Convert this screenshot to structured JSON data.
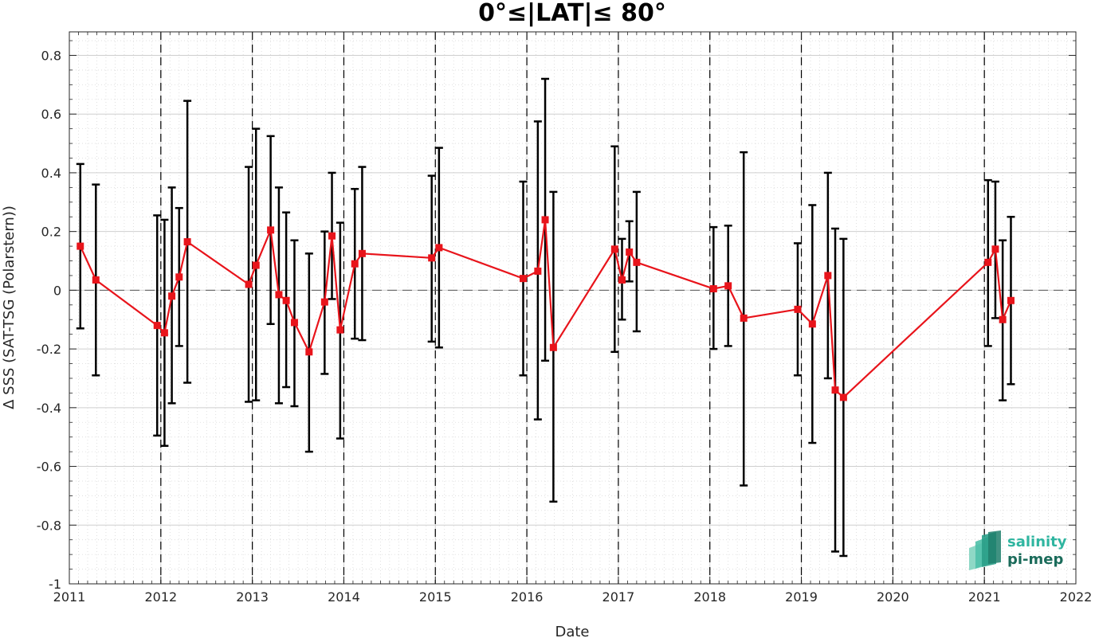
{
  "chart_data": {
    "type": "line",
    "title": "0°≤|LAT|≤ 80°",
    "xlabel": "Date",
    "ylabel": "Δ SSS (SAT-TSG (Polarstern))",
    "xlim": [
      2011,
      2022
    ],
    "ylim": [
      -1,
      0.88
    ],
    "x_ticks": [
      2011,
      2012,
      2013,
      2014,
      2015,
      2016,
      2017,
      2018,
      2019,
      2020,
      2021,
      2022
    ],
    "x_tick_labels": [
      "2011",
      "2012",
      "2013",
      "2014",
      "2015",
      "2016",
      "2017",
      "2018",
      "2019",
      "2020",
      "2021",
      "2022"
    ],
    "y_ticks": [
      -1,
      -0.8,
      -0.6,
      -0.4,
      -0.2,
      0,
      0.2,
      0.4,
      0.6,
      0.8
    ],
    "y_tick_labels": [
      "-1",
      "-0.8",
      "-0.6",
      "-0.4",
      "-0.2",
      "0",
      "0.2",
      "0.4",
      "0.6",
      "0.8"
    ],
    "year_boundaries": [
      2012,
      2013,
      2014,
      2015,
      2016,
      2017,
      2018,
      2019,
      2020,
      2021
    ],
    "zero_line": 0,
    "grid": "minor dotted",
    "colors": {
      "series": "#e8141b",
      "errorbar": "#000000",
      "grid": "#d9d9d9"
    },
    "series": [
      {
        "points": [
          {
            "x": 2011.12,
            "y": 0.15,
            "lo": -0.13,
            "hi": 0.43
          },
          {
            "x": 2011.29,
            "y": 0.035,
            "lo": -0.29,
            "hi": 0.36
          },
          {
            "x": 2011.96,
            "y": -0.12,
            "lo": -0.495,
            "hi": 0.255
          },
          {
            "x": 2012.04,
            "y": -0.145,
            "lo": -0.53,
            "hi": 0.24
          },
          {
            "x": 2012.12,
            "y": -0.02,
            "lo": -0.385,
            "hi": 0.35
          },
          {
            "x": 2012.2,
            "y": 0.045,
            "lo": -0.19,
            "hi": 0.28
          },
          {
            "x": 2012.29,
            "y": 0.165,
            "lo": -0.315,
            "hi": 0.645
          },
          {
            "x": 2012.96,
            "y": 0.02,
            "lo": -0.38,
            "hi": 0.42
          },
          {
            "x": 2013.04,
            "y": 0.085,
            "lo": -0.375,
            "hi": 0.55
          },
          {
            "x": 2013.2,
            "y": 0.205,
            "lo": -0.115,
            "hi": 0.525
          },
          {
            "x": 2013.29,
            "y": -0.015,
            "lo": -0.385,
            "hi": 0.35
          },
          {
            "x": 2013.37,
            "y": -0.035,
            "lo": -0.33,
            "hi": 0.265
          },
          {
            "x": 2013.46,
            "y": -0.11,
            "lo": -0.395,
            "hi": 0.17
          },
          {
            "x": 2013.62,
            "y": -0.21,
            "lo": -0.55,
            "hi": 0.125
          },
          {
            "x": 2013.79,
            "y": -0.04,
            "lo": -0.285,
            "hi": 0.2
          },
          {
            "x": 2013.87,
            "y": 0.185,
            "lo": -0.03,
            "hi": 0.4
          },
          {
            "x": 2013.96,
            "y": -0.135,
            "lo": -0.505,
            "hi": 0.23
          },
          {
            "x": 2014.12,
            "y": 0.09,
            "lo": -0.165,
            "hi": 0.345
          },
          {
            "x": 2014.2,
            "y": 0.125,
            "lo": -0.17,
            "hi": 0.42
          },
          {
            "x": 2014.96,
            "y": 0.11,
            "lo": -0.175,
            "hi": 0.39
          },
          {
            "x": 2015.04,
            "y": 0.145,
            "lo": -0.195,
            "hi": 0.485
          },
          {
            "x": 2015.96,
            "y": 0.04,
            "lo": -0.29,
            "hi": 0.37
          },
          {
            "x": 2016.12,
            "y": 0.065,
            "lo": -0.44,
            "hi": 0.575
          },
          {
            "x": 2016.2,
            "y": 0.24,
            "lo": -0.24,
            "hi": 0.72
          },
          {
            "x": 2016.29,
            "y": -0.195,
            "lo": -0.72,
            "hi": 0.335
          },
          {
            "x": 2016.96,
            "y": 0.14,
            "lo": -0.21,
            "hi": 0.49
          },
          {
            "x": 2017.04,
            "y": 0.035,
            "lo": -0.1,
            "hi": 0.175
          },
          {
            "x": 2017.12,
            "y": 0.13,
            "lo": 0.03,
            "hi": 0.235
          },
          {
            "x": 2017.2,
            "y": 0.095,
            "lo": -0.14,
            "hi": 0.335
          },
          {
            "x": 2018.04,
            "y": 0.005,
            "lo": -0.2,
            "hi": 0.215
          },
          {
            "x": 2018.2,
            "y": 0.015,
            "lo": -0.19,
            "hi": 0.22
          },
          {
            "x": 2018.37,
            "y": -0.095,
            "lo": -0.665,
            "hi": 0.47
          },
          {
            "x": 2018.96,
            "y": -0.065,
            "lo": -0.29,
            "hi": 0.16
          },
          {
            "x": 2019.12,
            "y": -0.115,
            "lo": -0.52,
            "hi": 0.29
          },
          {
            "x": 2019.29,
            "y": 0.05,
            "lo": -0.3,
            "hi": 0.4
          },
          {
            "x": 2019.37,
            "y": -0.34,
            "lo": -0.89,
            "hi": 0.21
          },
          {
            "x": 2019.46,
            "y": -0.365,
            "lo": -0.905,
            "hi": 0.175
          },
          {
            "x": 2021.04,
            "y": 0.095,
            "lo": -0.19,
            "hi": 0.375
          },
          {
            "x": 2021.12,
            "y": 0.14,
            "lo": -0.095,
            "hi": 0.37
          },
          {
            "x": 2021.2,
            "y": -0.1,
            "lo": -0.375,
            "hi": 0.17
          },
          {
            "x": 2021.29,
            "y": -0.035,
            "lo": -0.32,
            "hi": 0.25
          }
        ]
      }
    ]
  },
  "logo": {
    "line1": "salinity",
    "line2": "pi-mep",
    "color1": "#2fb5a0",
    "color2": "#1a6b5a"
  }
}
